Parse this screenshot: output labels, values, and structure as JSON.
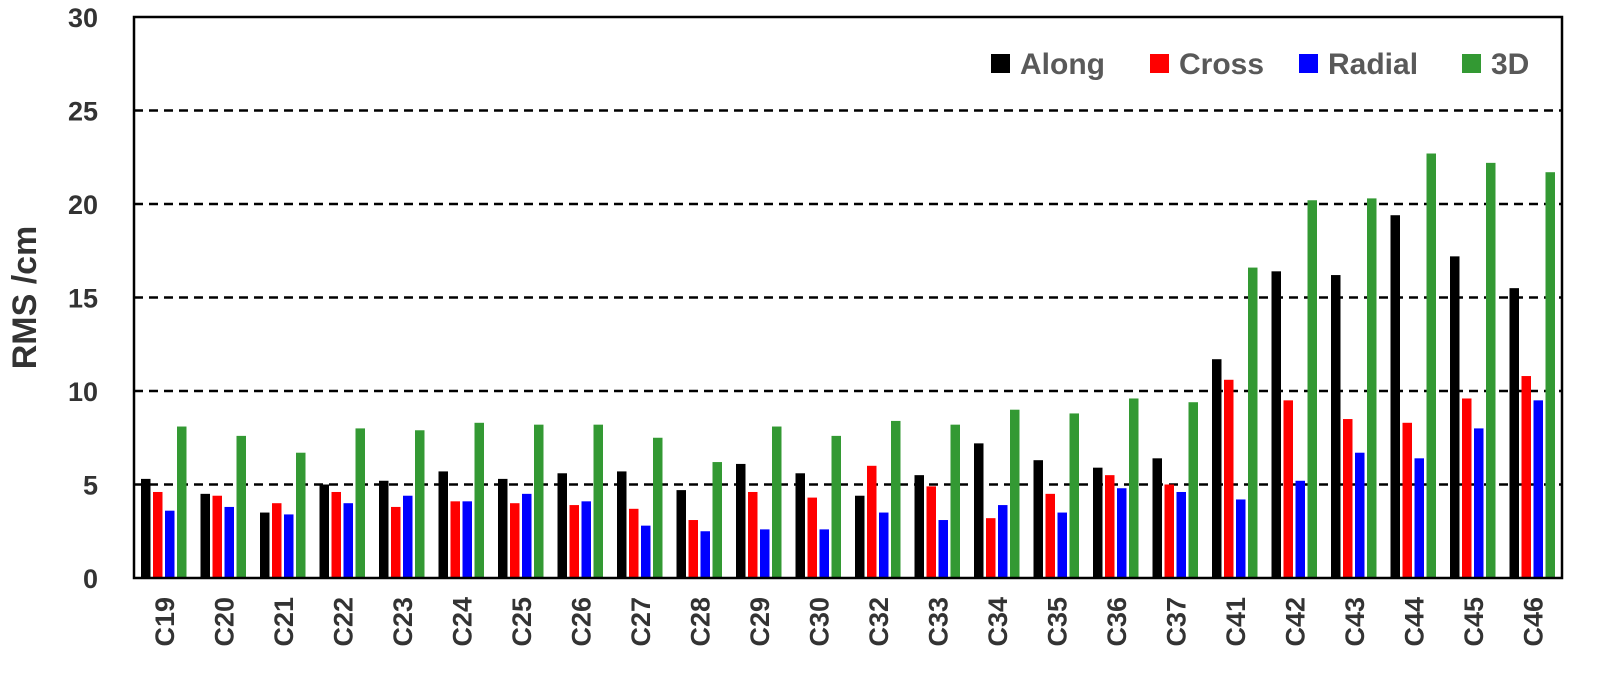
{
  "chart_data": {
    "type": "bar",
    "ylabel": "RMS /cm",
    "xlabel": "",
    "ylim": [
      0,
      30
    ],
    "yticks": [
      0,
      5,
      10,
      15,
      20,
      25,
      30
    ],
    "grid": true,
    "legend_position": "top-right",
    "categories": [
      "C19",
      "C20",
      "C21",
      "C22",
      "C23",
      "C24",
      "C25",
      "C26",
      "C27",
      "C28",
      "C29",
      "C30",
      "C32",
      "C33",
      "C34",
      "C35",
      "C36",
      "C37",
      "C41",
      "C42",
      "C43",
      "C44",
      "C45",
      "C46"
    ],
    "series": [
      {
        "name": "Along",
        "color": "#000000",
        "values": [
          5.3,
          4.5,
          3.5,
          5.0,
          5.2,
          5.7,
          5.3,
          5.6,
          5.7,
          4.7,
          6.1,
          5.6,
          4.4,
          5.5,
          7.2,
          6.3,
          5.9,
          6.4,
          11.7,
          16.4,
          16.2,
          19.4,
          17.2,
          15.5
        ]
      },
      {
        "name": "Cross",
        "color": "#ff0000",
        "values": [
          4.6,
          4.4,
          4.0,
          4.6,
          3.8,
          4.1,
          4.0,
          3.9,
          3.7,
          3.1,
          4.6,
          4.3,
          6.0,
          4.9,
          3.2,
          4.5,
          5.5,
          5.0,
          10.6,
          9.5,
          8.5,
          8.3,
          9.6,
          10.8
        ]
      },
      {
        "name": "Radial",
        "color": "#0000ff",
        "values": [
          3.6,
          3.8,
          3.4,
          4.0,
          4.4,
          4.1,
          4.5,
          4.1,
          2.8,
          2.5,
          2.6,
          2.6,
          3.5,
          3.1,
          3.9,
          3.5,
          4.8,
          4.6,
          4.2,
          5.2,
          6.7,
          6.4,
          8.0,
          9.5
        ]
      },
      {
        "name": "3D",
        "color": "#339933",
        "values": [
          8.1,
          7.6,
          6.7,
          8.0,
          7.9,
          8.3,
          8.2,
          8.2,
          7.5,
          6.2,
          8.1,
          7.6,
          8.4,
          8.2,
          9.0,
          8.8,
          9.6,
          9.4,
          16.6,
          20.2,
          20.3,
          22.7,
          22.2,
          21.7
        ]
      }
    ]
  }
}
